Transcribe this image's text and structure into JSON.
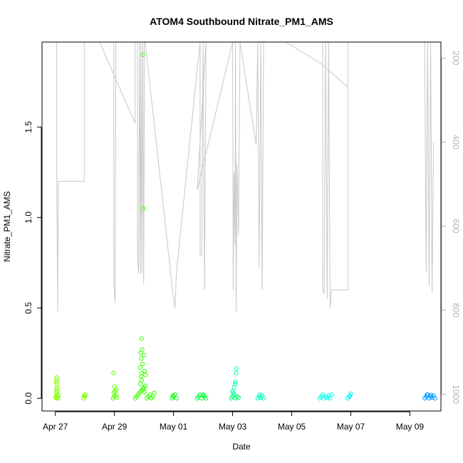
{
  "chart_data": {
    "type": "scatter",
    "title": "ATOM4 Southbound Nitrate_PM1_AMS",
    "xlabel": "Date",
    "ylabel": "Nitrate_PM1_AMS",
    "x_ticks": [
      "Apr 27",
      "Apr 29",
      "May 01",
      "May 03",
      "May 05",
      "May 07",
      "May 09"
    ],
    "x_tick_days": [
      0,
      2,
      4,
      6,
      8,
      10,
      12
    ],
    "xlim_days": [
      -0.45,
      13.05
    ],
    "ylim": [
      -0.07,
      1.97
    ],
    "y_ticks": [
      "0.0",
      "0.5",
      "1.0",
      "1.5"
    ],
    "y_tick_values": [
      0,
      0.5,
      1.0,
      1.5
    ],
    "y2_ticks": [
      "200",
      "400",
      "600",
      "800",
      "1000"
    ],
    "y2_tick_values": [
      200,
      400,
      600,
      800,
      1000
    ],
    "y2lim": [
      162,
      1040
    ],
    "point_clusters": [
      {
        "color": "#7fff00",
        "points": [
          [
            0.05,
            0.0
          ],
          [
            0.02,
            0.01
          ],
          [
            0.08,
            0.02
          ],
          [
            0.04,
            0.03
          ],
          [
            0.06,
            0.04
          ],
          [
            0.03,
            0.05
          ],
          [
            0.07,
            0.06
          ],
          [
            0.05,
            0.08
          ],
          [
            0.02,
            0.09
          ],
          [
            0.06,
            0.1
          ],
          [
            0.04,
            0.115
          ],
          [
            0.09,
            0.0
          ],
          [
            0.01,
            0.005
          ],
          [
            0.1,
            0.015
          ]
        ]
      },
      {
        "color": "#79ff00",
        "points": [
          [
            0.95,
            0.0
          ],
          [
            1.0,
            0.01
          ],
          [
            1.03,
            0.02
          ],
          [
            0.98,
            0.015
          ]
        ]
      },
      {
        "color": "#5cff00",
        "points": [
          [
            1.95,
            0.0
          ],
          [
            2.0,
            0.01
          ],
          [
            2.05,
            0.02
          ],
          [
            1.98,
            0.03
          ],
          [
            2.02,
            0.04
          ],
          [
            2.06,
            0.05
          ],
          [
            2.01,
            0.065
          ],
          [
            1.97,
            0.14
          ],
          [
            2.08,
            0.005
          ]
        ]
      },
      {
        "color": "#3cff00",
        "points": [
          [
            2.7,
            0.0
          ],
          [
            2.75,
            0.01
          ],
          [
            2.8,
            0.02
          ],
          [
            2.85,
            0.03
          ],
          [
            2.9,
            0.04
          ],
          [
            2.95,
            0.05
          ],
          [
            3.0,
            0.06
          ],
          [
            3.05,
            0.07
          ],
          [
            3.1,
            0.0
          ],
          [
            3.15,
            0.01
          ],
          [
            3.2,
            0.02
          ],
          [
            3.25,
            0.0
          ],
          [
            3.3,
            0.01
          ],
          [
            3.35,
            0.03
          ],
          [
            2.88,
            0.08
          ],
          [
            2.92,
            0.1
          ],
          [
            2.9,
            0.12
          ],
          [
            2.93,
            0.14
          ],
          [
            2.87,
            0.17
          ],
          [
            2.95,
            0.19
          ],
          [
            2.91,
            0.22
          ],
          [
            2.89,
            0.25
          ],
          [
            2.94,
            0.27
          ],
          [
            2.92,
            0.33
          ],
          [
            3.0,
            0.24
          ],
          [
            3.02,
            0.15
          ],
          [
            3.05,
            0.13
          ],
          [
            2.97,
            0.05
          ],
          [
            3.02,
            0.035
          ],
          [
            2.98,
            1.05
          ],
          [
            2.96,
            1.9
          ]
        ]
      },
      {
        "color": "#14ff18",
        "points": [
          [
            3.95,
            0.0
          ],
          [
            4.0,
            0.01
          ],
          [
            4.05,
            0.02
          ],
          [
            4.1,
            0.0
          ],
          [
            3.98,
            0.015
          ]
        ]
      },
      {
        "color": "#00ff3c",
        "points": [
          [
            4.8,
            0.0
          ],
          [
            4.85,
            0.01
          ],
          [
            4.9,
            0.02
          ],
          [
            4.95,
            0.0
          ],
          [
            5.0,
            0.015
          ],
          [
            5.05,
            0.01
          ],
          [
            5.1,
            0.0
          ],
          [
            5.0,
            0.02
          ]
        ]
      },
      {
        "color": "#00ff70",
        "points": [
          [
            5.95,
            0.0
          ],
          [
            6.0,
            0.01
          ],
          [
            6.05,
            0.02
          ],
          [
            6.1,
            0.0
          ],
          [
            6.15,
            0.01
          ],
          [
            6.2,
            0.005
          ]
        ]
      },
      {
        "color": "#00ffa6",
        "points": [
          [
            6.0,
            0.04
          ],
          [
            6.05,
            0.06
          ],
          [
            6.08,
            0.08
          ],
          [
            6.1,
            0.09
          ],
          [
            6.12,
            0.14
          ],
          [
            6.13,
            0.165
          ],
          [
            6.02,
            0.03
          ]
        ]
      },
      {
        "color": "#00ffc0",
        "points": [
          [
            6.85,
            0.0
          ],
          [
            6.9,
            0.01
          ],
          [
            6.95,
            0.005
          ],
          [
            7.0,
            0.015
          ],
          [
            7.05,
            0.0
          ],
          [
            6.93,
            0.02
          ]
        ]
      },
      {
        "color": "#00ffea",
        "points": [
          [
            8.95,
            0.0
          ],
          [
            9.0,
            0.01
          ],
          [
            9.05,
            0.02
          ],
          [
            9.1,
            0.0
          ],
          [
            9.15,
            0.01
          ],
          [
            9.2,
            0.005
          ],
          [
            9.25,
            0.015
          ],
          [
            9.3,
            0.0
          ],
          [
            9.35,
            0.02
          ]
        ]
      },
      {
        "color": "#00f4ff",
        "points": [
          [
            9.9,
            0.0
          ],
          [
            9.95,
            0.01
          ],
          [
            10.0,
            0.025
          ],
          [
            9.97,
            0.015
          ]
        ]
      },
      {
        "color": "#0099ff",
        "points": [
          [
            12.5,
            0.0
          ],
          [
            12.55,
            0.01
          ],
          [
            12.6,
            0.02
          ],
          [
            12.65,
            0.0
          ],
          [
            12.7,
            0.01
          ],
          [
            12.75,
            0.005
          ],
          [
            12.8,
            0.015
          ],
          [
            12.85,
            0.0
          ],
          [
            12.58,
            0.02
          ],
          [
            12.72,
            0.018
          ]
        ]
      }
    ],
    "altitude_line": {
      "color": "#c8c8c8",
      "points": [
        [
          0.0,
          1.97
        ],
        [
          0.05,
          1.97
        ],
        [
          0.05,
          1.2
        ],
        [
          0.08,
          0.48
        ],
        [
          0.1,
          1.2
        ],
        [
          0.98,
          1.2
        ],
        [
          0.98,
          1.97
        ],
        [
          1.5,
          1.97
        ],
        [
          2.7,
          1.52
        ],
        [
          2.7,
          1.97
        ],
        [
          1.98,
          1.97
        ],
        [
          1.98,
          0.64
        ],
        [
          2.02,
          0.53
        ],
        [
          2.05,
          1.97
        ],
        [
          2.78,
          1.97
        ],
        [
          2.78,
          0.79
        ],
        [
          2.82,
          0.69
        ],
        [
          2.85,
          1.97
        ],
        [
          2.88,
          0.69
        ],
        [
          2.9,
          1.97
        ],
        [
          2.93,
          0.69
        ],
        [
          2.96,
          1.97
        ],
        [
          2.99,
          0.63
        ],
        [
          3.02,
          1.97
        ],
        [
          3.04,
          1.97
        ],
        [
          4.0,
          0.55
        ],
        [
          4.05,
          0.5
        ],
        [
          4.1,
          0.7
        ],
        [
          4.9,
          1.97
        ],
        [
          4.9,
          0.79
        ],
        [
          4.95,
          0.79
        ],
        [
          5.0,
          1.97
        ],
        [
          5.05,
          0.6
        ],
        [
          5.1,
          1.97
        ],
        [
          4.8,
          1.15
        ],
        [
          6.0,
          1.97
        ],
        [
          6.02,
          0.6
        ],
        [
          6.05,
          1.25
        ],
        [
          6.08,
          0.85
        ],
        [
          6.1,
          1.97
        ],
        [
          6.12,
          0.48
        ],
        [
          6.15,
          1.3
        ],
        [
          6.2,
          0.9
        ],
        [
          6.25,
          1.97
        ],
        [
          6.8,
          1.4
        ],
        [
          6.85,
          1.97
        ],
        [
          6.9,
          0.72
        ],
        [
          6.95,
          1.97
        ],
        [
          7.0,
          0.6
        ],
        [
          7.05,
          1.97
        ],
        [
          7.8,
          1.97
        ],
        [
          9.0,
          1.85
        ],
        [
          9.9,
          1.72
        ],
        [
          9.9,
          1.97
        ],
        [
          9.05,
          1.97
        ],
        [
          9.05,
          0.6
        ],
        [
          9.1,
          0.58
        ],
        [
          9.15,
          1.97
        ],
        [
          9.2,
          0.55
        ],
        [
          9.25,
          1.97
        ],
        [
          9.3,
          0.5
        ],
        [
          9.35,
          0.6
        ],
        [
          9.9,
          0.6
        ],
        [
          9.9,
          1.97
        ],
        [
          12.5,
          1.97
        ],
        [
          12.55,
          0.7
        ],
        [
          12.6,
          1.97
        ],
        [
          12.65,
          0.62
        ],
        [
          12.7,
          1.97
        ],
        [
          12.75,
          0.58
        ],
        [
          12.8,
          1.42
        ]
      ]
    }
  }
}
